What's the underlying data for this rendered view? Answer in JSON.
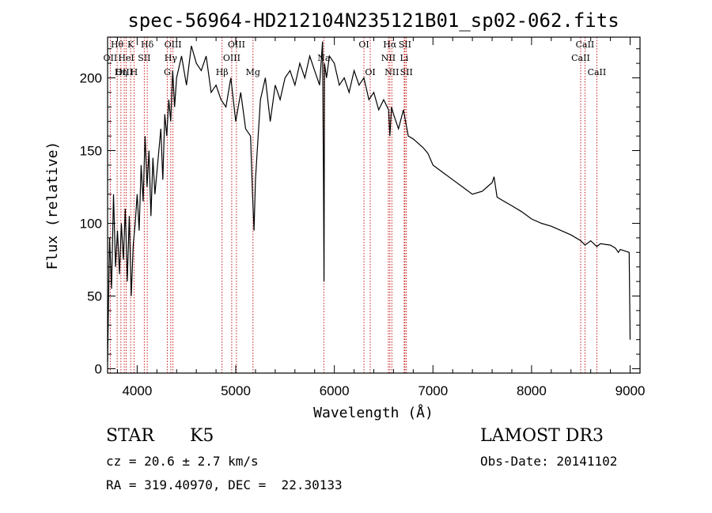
{
  "chart_data": {
    "type": "line",
    "title": "spec-56964-HD212104N235121B01_sp02-062.fits",
    "xlabel": "Wavelength (Å)",
    "ylabel": "Flux (relative)",
    "xlim": [
      3700,
      9100
    ],
    "ylim": [
      -3,
      228
    ],
    "x_ticks": [
      4000,
      5000,
      6000,
      7000,
      8000,
      9000
    ],
    "y_ticks": [
      0,
      50,
      100,
      150,
      200
    ],
    "series": [
      {
        "name": "flux",
        "x": [
          3700,
          3720,
          3740,
          3760,
          3780,
          3800,
          3820,
          3840,
          3860,
          3880,
          3900,
          3920,
          3940,
          3960,
          3980,
          4000,
          4020,
          4040,
          4060,
          4080,
          4100,
          4120,
          4140,
          4160,
          4180,
          4200,
          4220,
          4240,
          4260,
          4280,
          4300,
          4320,
          4340,
          4360,
          4380,
          4400,
          4450,
          4500,
          4550,
          4600,
          4650,
          4700,
          4750,
          4800,
          4850,
          4900,
          4950,
          5000,
          5050,
          5100,
          5150,
          5170,
          5185,
          5200,
          5250,
          5300,
          5350,
          5400,
          5450,
          5500,
          5550,
          5600,
          5650,
          5700,
          5750,
          5800,
          5850,
          5880,
          5890,
          5895,
          5900,
          5920,
          5950,
          6000,
          6050,
          6100,
          6150,
          6200,
          6250,
          6300,
          6350,
          6400,
          6450,
          6500,
          6550,
          6563,
          6580,
          6600,
          6650,
          6700,
          6750,
          6800,
          6850,
          6900,
          6950,
          7000,
          7100,
          7200,
          7300,
          7400,
          7500,
          7550,
          7600,
          7620,
          7650,
          7700,
          7800,
          7900,
          8000,
          8100,
          8200,
          8300,
          8400,
          8500,
          8542,
          8600,
          8662,
          8700,
          8800,
          8850,
          8880,
          8900,
          8990,
          9000
        ],
        "values": [
          5,
          90,
          55,
          120,
          70,
          95,
          65,
          100,
          75,
          110,
          60,
          105,
          50,
          85,
          100,
          120,
          95,
          140,
          115,
          160,
          125,
          150,
          105,
          145,
          120,
          135,
          150,
          165,
          130,
          175,
          160,
          185,
          170,
          205,
          180,
          200,
          215,
          195,
          222,
          210,
          205,
          215,
          190,
          195,
          185,
          180,
          200,
          170,
          190,
          165,
          160,
          120,
          95,
          130,
          185,
          200,
          170,
          195,
          185,
          200,
          205,
          195,
          210,
          200,
          215,
          205,
          195,
          225,
          130,
          60,
          210,
          200,
          215,
          210,
          195,
          200,
          190,
          205,
          195,
          200,
          185,
          190,
          178,
          185,
          178,
          160,
          180,
          175,
          165,
          178,
          160,
          158,
          155,
          152,
          148,
          140,
          135,
          130,
          125,
          120,
          122,
          125,
          128,
          132,
          118,
          116,
          112,
          108,
          103,
          100,
          98,
          95,
          92,
          88,
          85,
          88,
          84,
          86,
          85,
          83,
          80,
          82,
          80,
          20
        ]
      }
    ],
    "spectral_lines": [
      {
        "label": "Hθ",
        "wavelength": 3797,
        "row": 0
      },
      {
        "label": "OII",
        "wavelength": 3727,
        "row": 1
      },
      {
        "label": "OIII",
        "wavelength": 3869,
        "row": 2
      },
      {
        "label": "K",
        "wavelength": 3934,
        "row": 0
      },
      {
        "label": "HeI",
        "wavelength": 3889,
        "row": 1
      },
      {
        "label": "Hη",
        "wavelength": 3835,
        "row": 2
      },
      {
        "label": "Hδ",
        "wavelength": 4102,
        "row": 0
      },
      {
        "label": "SII",
        "wavelength": 4072,
        "row": 1
      },
      {
        "label": "H",
        "wavelength": 3968,
        "row": 2
      },
      {
        "label": "OIII",
        "wavelength": 4363,
        "row": 0
      },
      {
        "label": "Hγ",
        "wavelength": 4341,
        "row": 1
      },
      {
        "label": "G",
        "wavelength": 4305,
        "row": 2
      },
      {
        "label": "OIII",
        "wavelength": 5007,
        "row": 0
      },
      {
        "label": "OIII",
        "wavelength": 4959,
        "row": 1
      },
      {
        "label": "Hβ",
        "wavelength": 4861,
        "row": 2
      },
      {
        "label": "Mg",
        "wavelength": 5175,
        "row": 2
      },
      {
        "label": "Na",
        "wavelength": 5893,
        "row": 1
      },
      {
        "label": "OI",
        "wavelength": 6300,
        "row": 0
      },
      {
        "label": "OI",
        "wavelength": 6364,
        "row": 2
      },
      {
        "label": "Hα",
        "wavelength": 6563,
        "row": 0
      },
      {
        "label": "SII",
        "wavelength": 6716,
        "row": 0
      },
      {
        "label": "NII",
        "wavelength": 6548,
        "row": 1
      },
      {
        "label": "Li",
        "wavelength": 6708,
        "row": 1
      },
      {
        "label": "NII",
        "wavelength": 6583,
        "row": 2
      },
      {
        "label": "SII",
        "wavelength": 6731,
        "row": 2
      },
      {
        "label": "CaII",
        "wavelength": 8542,
        "row": 0
      },
      {
        "label": "CaII",
        "wavelength": 8498,
        "row": 1
      },
      {
        "label": "CaII",
        "wavelength": 8662,
        "row": 2
      }
    ]
  },
  "info": {
    "object_class": "STAR",
    "subclass": "K5",
    "survey": "LAMOST DR3",
    "redshift": "cz = 20.6 ± 2.7 km/s",
    "obs_date": "Obs-Date: 20141102",
    "coords": "RA = 319.40970, DEC =  22.30133"
  },
  "colors": {
    "line": "#000000",
    "marker": "#c00000"
  }
}
